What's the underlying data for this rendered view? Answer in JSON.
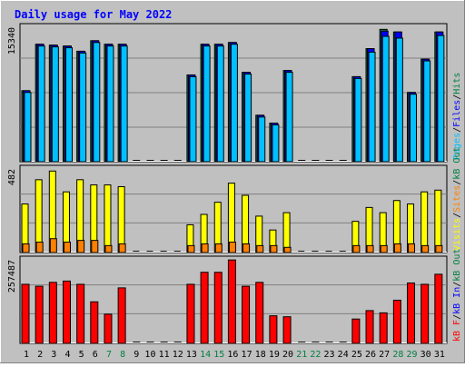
{
  "chart_data": {
    "type": "bar",
    "title": "Daily usage for May 2022",
    "x": {
      "labels": [
        "1",
        "2",
        "3",
        "4",
        "5",
        "6",
        "7",
        "8",
        "9",
        "10",
        "11",
        "12",
        "13",
        "14",
        "15",
        "16",
        "17",
        "18",
        "19",
        "20",
        "21",
        "22",
        "23",
        "24",
        "25",
        "26",
        "27",
        "28",
        "29",
        "30",
        "31"
      ],
      "weekend": [
        7,
        8,
        14,
        15,
        21,
        22,
        28,
        29
      ]
    },
    "panels": [
      {
        "name": "Pages / Files / Hits",
        "ymax_label": "15340",
        "ymax": 15340,
        "legend": [
          {
            "text": "Pages",
            "color": "#00c0ff"
          },
          {
            "text": "/",
            "color": "#000000"
          },
          {
            "text": "Files",
            "color": "#0000ff"
          },
          {
            "text": "/",
            "color": "#000000"
          },
          {
            "text": "Hits",
            "color": "#008040"
          }
        ],
        "series": [
          {
            "name": "Hits",
            "color": "#008040",
            "values": [
              8100,
              13400,
              13300,
              13200,
              12600,
              13800,
              13400,
              13400,
              0,
              0,
              0,
              0,
              9900,
              13400,
              13400,
              13600,
              10200,
              5300,
              4400,
              10400,
              0,
              0,
              0,
              0,
              9700,
              12900,
              15100,
              14800,
              7900,
              11700,
              14800
            ]
          },
          {
            "name": "Files",
            "color": "#0000ff",
            "values": [
              8100,
              13400,
              13300,
              13200,
              12600,
              13800,
              13400,
              13400,
              0,
              0,
              0,
              0,
              9900,
              13400,
              13400,
              13600,
              10200,
              5300,
              4400,
              10400,
              0,
              0,
              0,
              0,
              9700,
              12900,
              14900,
              14800,
              7900,
              11700,
              14800
            ]
          },
          {
            "name": "Pages",
            "color": "#00c0ff",
            "values": [
              7900,
              13200,
              13100,
              13000,
              12400,
              13600,
              13200,
              13200,
              0,
              0,
              0,
              0,
              9700,
              13200,
              13200,
              13400,
              10000,
              5100,
              4200,
              10200,
              0,
              0,
              0,
              0,
              9500,
              12500,
              14300,
              14100,
              7700,
              11500,
              14400
            ]
          }
        ]
      },
      {
        "name": "Visits / Sites / kB Out",
        "ymax_label": "482",
        "ymax": 482,
        "legend": [
          {
            "text": "Visits",
            "color": "#ffff00"
          },
          {
            "text": "/",
            "color": "#000000"
          },
          {
            "text": "Sites",
            "color": "#ff8000"
          },
          {
            "text": "/",
            "color": "#000000"
          },
          {
            "text": "kB Out",
            "color": "#008040"
          }
        ],
        "series": [
          {
            "name": "Visits",
            "color": "#ffff00",
            "values": [
              280,
              420,
              470,
              350,
              420,
              390,
              390,
              380,
              0,
              0,
              0,
              0,
              160,
              220,
              290,
              400,
              330,
              210,
              130,
              230,
              0,
              0,
              0,
              0,
              180,
              260,
              230,
              300,
              280,
              350,
              360
            ]
          },
          {
            "name": "Sites",
            "color": "#ff8000",
            "values": [
              50,
              60,
              80,
              60,
              70,
              70,
              40,
              50,
              0,
              0,
              0,
              0,
              40,
              50,
              50,
              60,
              50,
              40,
              40,
              30,
              0,
              0,
              0,
              0,
              40,
              40,
              40,
              50,
              50,
              40,
              40
            ]
          }
        ]
      },
      {
        "name": "kB F / kB In / kB Out",
        "ymax_label": "257487",
        "ymax": 257487,
        "legend": [
          {
            "text": "kB F",
            "color": "#ff0000"
          },
          {
            "text": "/",
            "color": "#000000"
          },
          {
            "text": "kB In",
            "color": "#0000ff"
          },
          {
            "text": "/",
            "color": "#000000"
          },
          {
            "text": "kB Out",
            "color": "#008040"
          }
        ],
        "series": [
          {
            "name": "kB F",
            "color": "#ff0000",
            "values": [
              182000,
              176000,
              188000,
              192000,
              182000,
              128000,
              90000,
              171000,
              0,
              0,
              0,
              0,
              182000,
              219000,
              219000,
              257000,
              176000,
              188000,
              85000,
              82000,
              0,
              0,
              0,
              0,
              75000,
              101000,
              94000,
              133000,
              186000,
              182000,
              213000
            ]
          }
        ]
      }
    ],
    "colors": {
      "background": "#c0c0c0",
      "frame_light": "#ffffff",
      "frame_dark": "#808080",
      "title": "#0000ff",
      "grid": "#808080",
      "weekday_label": "#000000",
      "weekend_label": "#008040"
    }
  }
}
